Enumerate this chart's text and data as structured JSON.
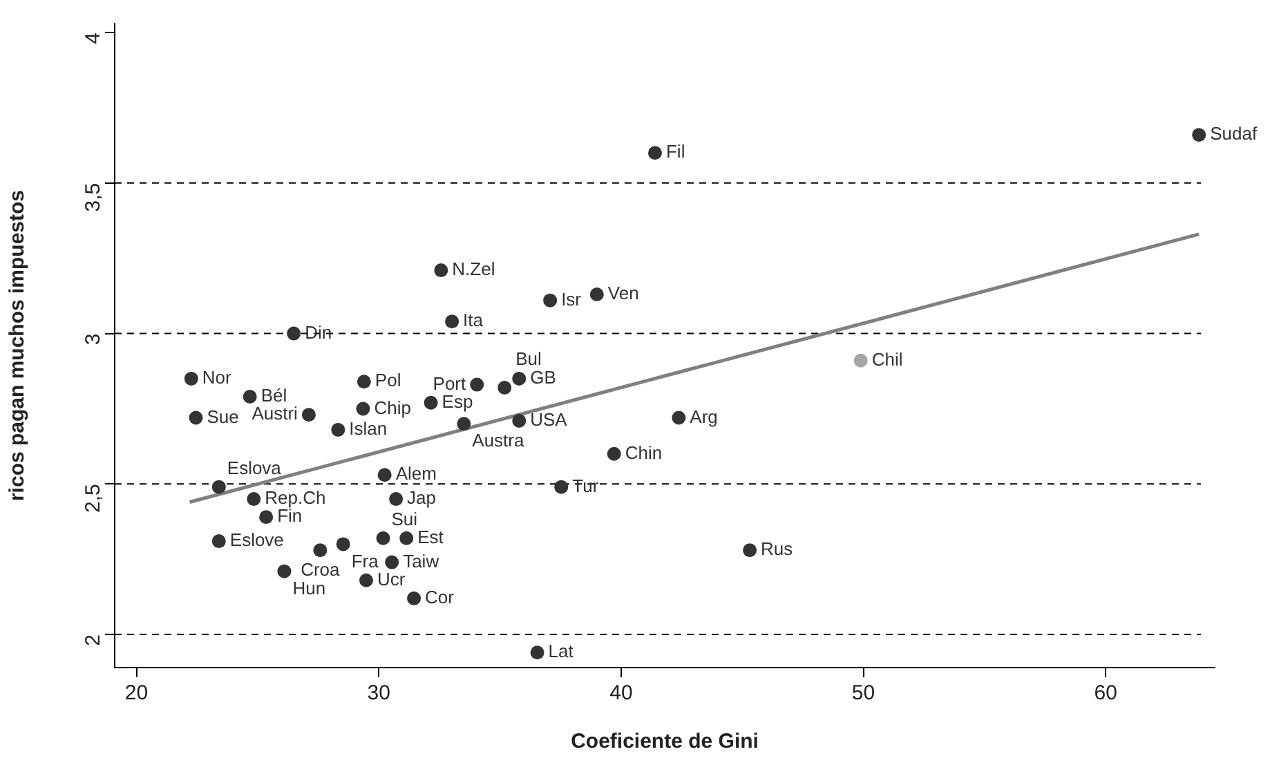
{
  "chart_data": {
    "type": "scatter",
    "xlabel": "Coeficiente de Gini",
    "ylabel": "ricos pagan muchos impuestos",
    "xlim": [
      19.1,
      64.5
    ],
    "ylim": [
      1.89,
      4.03
    ],
    "xticks": [
      20,
      30,
      40,
      50,
      60
    ],
    "yticks": [
      2,
      {
        "value": 2.5,
        "label": "2,5"
      },
      3,
      {
        "value": 3.5,
        "label": "3,5"
      },
      4
    ],
    "grid": false,
    "legend": false,
    "marker": "circle",
    "ref_lines": [
      {
        "axis": "y",
        "value": 2,
        "line_style": "dashed",
        "color": "#000000"
      },
      {
        "axis": "y",
        "value": 2.5,
        "line_style": "dashed",
        "color": "#000000"
      },
      {
        "axis": "y",
        "value": 3,
        "line_style": "dashed",
        "color": "#000000"
      },
      {
        "axis": "y",
        "value": 3.5,
        "line_style": "dashed",
        "color": "#000000"
      }
    ],
    "series": [
      {
        "x": [
          63.85,
          41.4,
          32.57,
          37.07,
          39.0,
          33.02,
          49.89,
          34.05,
          35.19,
          35.79,
          32.15,
          33.51,
          35.79,
          42.38,
          26.49,
          22.26,
          24.68,
          22.45,
          27.11,
          28.32,
          29.39,
          29.35,
          30.24,
          23.4,
          24.84,
          30.71,
          25.35,
          23.4,
          28.53,
          27.58,
          30.18,
          31.14,
          30.54,
          26.1,
          29.48,
          31.45,
          36.54,
          37.53,
          39.71,
          45.31
        ],
        "values": [
          3.66,
          3.6,
          3.21,
          3.11,
          3.13,
          3.04,
          2.91,
          2.83,
          2.82,
          2.85,
          2.77,
          2.7,
          2.71,
          2.72,
          3.0,
          2.85,
          2.79,
          2.72,
          2.73,
          2.68,
          2.84,
          2.75,
          2.53,
          2.49,
          2.45,
          2.45,
          2.39,
          2.31,
          2.3,
          2.28,
          2.32,
          2.32,
          2.24,
          2.21,
          2.18,
          2.12,
          1.94,
          2.49,
          2.6,
          2.28
        ],
        "colors": [
          "#333333",
          "#333333",
          "#333333",
          "#333333",
          "#333333",
          "#333333",
          "#a6a6a6",
          "#333333",
          "#333333",
          "#333333",
          "#333333",
          "#333333",
          "#333333",
          "#333333",
          "#333333",
          "#333333",
          "#333333",
          "#333333",
          "#333333",
          "#333333",
          "#333333",
          "#333333",
          "#333333",
          "#333333",
          "#333333",
          "#333333",
          "#333333",
          "#333333",
          "#333333",
          "#333333",
          "#333333",
          "#333333",
          "#333333",
          "#333333",
          "#333333",
          "#333333",
          "#333333",
          "#333333",
          "#333333",
          "#333333"
        ]
      },
      {
        "type": "line",
        "color": "#808080",
        "marker": "none",
        "x": [
          22.2,
          63.85
        ],
        "values": [
          2.44,
          3.33
        ]
      }
    ],
    "annotations": [
      {
        "text": "Sudaf",
        "x": 63.85,
        "y": 3.66
      },
      {
        "text": "Fil",
        "x": 41.4,
        "y": 3.6
      },
      {
        "text": "N.Zel",
        "x": 32.57,
        "y": 3.21
      },
      {
        "text": "Isr",
        "x": 37.07,
        "y": 3.11
      },
      {
        "text": "Ven",
        "x": 39.0,
        "y": 3.13
      },
      {
        "text": "Ita",
        "x": 33.02,
        "y": 3.04
      },
      {
        "text": "Chil",
        "x": 49.89,
        "y": 2.91
      },
      {
        "text": "Port",
        "x": 34.05,
        "y": 2.83
      },
      {
        "text": "Bul",
        "x": 35.19,
        "y": 2.82
      },
      {
        "text": "GB",
        "x": 35.79,
        "y": 2.85
      },
      {
        "text": "Esp",
        "x": 32.15,
        "y": 2.77
      },
      {
        "text": "Austra",
        "x": 33.51,
        "y": 2.7
      },
      {
        "text": "USA",
        "x": 35.79,
        "y": 2.71
      },
      {
        "text": "Arg",
        "x": 42.38,
        "y": 2.72
      },
      {
        "text": "Din",
        "x": 26.49,
        "y": 3.0
      },
      {
        "text": "Nor",
        "x": 22.26,
        "y": 2.85
      },
      {
        "text": "Bél",
        "x": 24.68,
        "y": 2.79
      },
      {
        "text": "Sue",
        "x": 22.45,
        "y": 2.72
      },
      {
        "text": "Austri",
        "x": 27.11,
        "y": 2.73
      },
      {
        "text": "Islan",
        "x": 28.32,
        "y": 2.68
      },
      {
        "text": "Pol",
        "x": 29.39,
        "y": 2.84
      },
      {
        "text": "Chip",
        "x": 29.35,
        "y": 2.75
      },
      {
        "text": "Alem",
        "x": 30.24,
        "y": 2.53
      },
      {
        "text": "Eslova",
        "x": 23.4,
        "y": 2.49
      },
      {
        "text": "Rep.Ch",
        "x": 24.84,
        "y": 2.45
      },
      {
        "text": "Jap",
        "x": 30.71,
        "y": 2.45
      },
      {
        "text": "Fin",
        "x": 25.35,
        "y": 2.39
      },
      {
        "text": "Eslove",
        "x": 23.4,
        "y": 2.31
      },
      {
        "text": "Fra",
        "x": 28.53,
        "y": 2.3
      },
      {
        "text": "Croa",
        "x": 27.58,
        "y": 2.28
      },
      {
        "text": "Sui",
        "x": 30.18,
        "y": 2.32
      },
      {
        "text": "Est",
        "x": 31.14,
        "y": 2.32
      },
      {
        "text": "Taiw",
        "x": 30.54,
        "y": 2.24
      },
      {
        "text": "Hun",
        "x": 26.1,
        "y": 2.21
      },
      {
        "text": "Ucr",
        "x": 29.48,
        "y": 2.18
      },
      {
        "text": "Cor",
        "x": 31.45,
        "y": 2.12
      },
      {
        "text": "Lat",
        "x": 36.54,
        "y": 1.94
      },
      {
        "text": "Tur",
        "x": 37.53,
        "y": 2.49
      },
      {
        "text": "Chin",
        "x": 39.71,
        "y": 2.6
      },
      {
        "text": "Rus",
        "x": 45.31,
        "y": 2.28
      }
    ]
  }
}
